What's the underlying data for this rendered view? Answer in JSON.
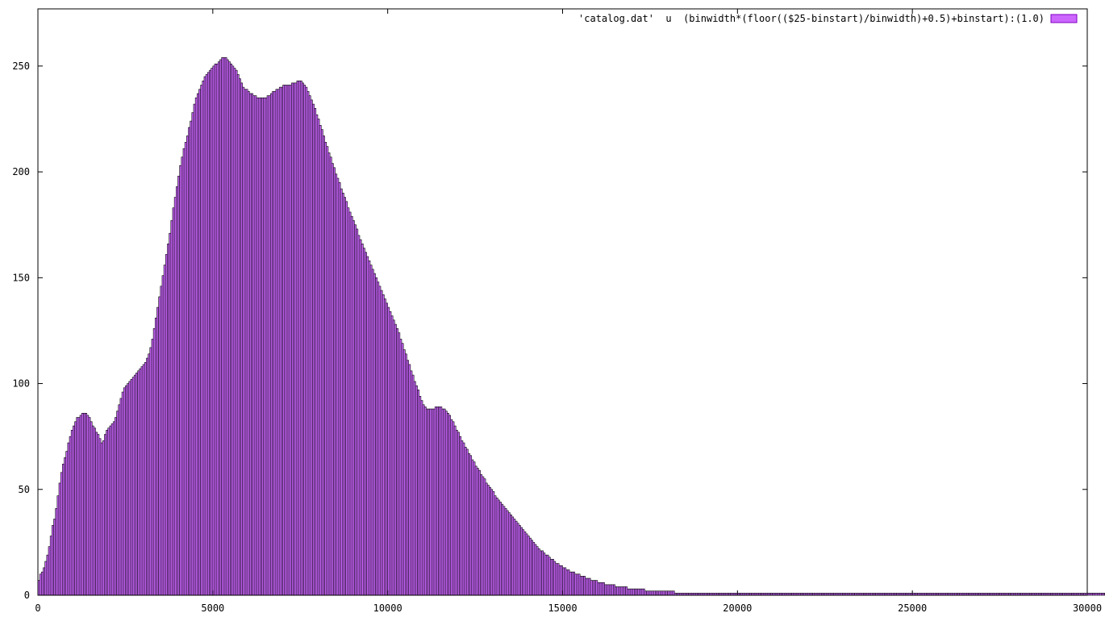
{
  "chart_data": {
    "type": "bar",
    "title": "",
    "xlabel": "",
    "ylabel": "",
    "xlim": [
      0,
      30000
    ],
    "ylim": [
      0,
      277
    ],
    "bin_width": 50,
    "x_ticks": [
      "0",
      "5000",
      "10000",
      "15000",
      "20000",
      "25000",
      "30000"
    ],
    "y_ticks": [
      "0",
      "50",
      "100",
      "150",
      "200",
      "250"
    ],
    "grid": false,
    "legend_position": "top-right",
    "colors": {
      "fill": "#cc66ff",
      "stroke": "#8000c0"
    },
    "series": [
      {
        "name": "'catalog.dat'  u  (binwidth*(floor(($25-binstart)/binwidth)+0.5)+binstart):(1.0)",
        "x_start": 0,
        "values": [
          7,
          10,
          11,
          13,
          16,
          19,
          23,
          28,
          33,
          36,
          41,
          47,
          53,
          58,
          62,
          65,
          68,
          72,
          75,
          78,
          80,
          82,
          84,
          84,
          85,
          86,
          86,
          86,
          85,
          84,
          82,
          80,
          79,
          77,
          76,
          74,
          72,
          73,
          76,
          78,
          79,
          80,
          81,
          82,
          84,
          87,
          90,
          93,
          96,
          98,
          99,
          100,
          101,
          102,
          103,
          104,
          105,
          106,
          107,
          108,
          109,
          110,
          112,
          114,
          117,
          121,
          126,
          131,
          136,
          141,
          146,
          151,
          156,
          161,
          166,
          171,
          177,
          183,
          188,
          193,
          198,
          203,
          207,
          211,
          214,
          217,
          221,
          224,
          228,
          232,
          235,
          237,
          239,
          241,
          243,
          245,
          246,
          247,
          248,
          249,
          250,
          251,
          251,
          252,
          253,
          254,
          254,
          254,
          253,
          252,
          251,
          250,
          249,
          248,
          246,
          244,
          242,
          240,
          239,
          239,
          238,
          237,
          237,
          236,
          236,
          235,
          235,
          235,
          235,
          235,
          235,
          236,
          236,
          237,
          238,
          238,
          239,
          239,
          240,
          240,
          241,
          241,
          241,
          241,
          241,
          242,
          242,
          242,
          243,
          243,
          243,
          242,
          241,
          240,
          238,
          236,
          234,
          232,
          230,
          227,
          225,
          222,
          220,
          217,
          214,
          212,
          209,
          207,
          204,
          202,
          199,
          197,
          195,
          192,
          190,
          188,
          186,
          183,
          181,
          179,
          177,
          175,
          173,
          170,
          168,
          166,
          164,
          162,
          160,
          158,
          156,
          154,
          152,
          150,
          148,
          146,
          144,
          142,
          140,
          138,
          136,
          134,
          132,
          130,
          128,
          126,
          124,
          121,
          119,
          116,
          114,
          111,
          109,
          106,
          104,
          101,
          99,
          97,
          94,
          92,
          90,
          89,
          88,
          88,
          88,
          88,
          88,
          89,
          89,
          89,
          89,
          88,
          88,
          87,
          86,
          85,
          83,
          82,
          80,
          78,
          77,
          75,
          73,
          72,
          70,
          69,
          67,
          66,
          64,
          63,
          61,
          60,
          59,
          57,
          56,
          55,
          53,
          52,
          51,
          50,
          49,
          47,
          46,
          45,
          44,
          43,
          42,
          41,
          40,
          39,
          38,
          37,
          36,
          35,
          34,
          33,
          32,
          31,
          30,
          29,
          28,
          27,
          26,
          25,
          24,
          23,
          22,
          21,
          21,
          20,
          19,
          19,
          18,
          17,
          17,
          16,
          15,
          15,
          14,
          14,
          13,
          13,
          12,
          12,
          11,
          11,
          11,
          10,
          10,
          10,
          9,
          9,
          9,
          8,
          8,
          8,
          7,
          7,
          7,
          7,
          6,
          6,
          6,
          6,
          5,
          5,
          5,
          5,
          5,
          5,
          4,
          4,
          4,
          4,
          4,
          4,
          4,
          3,
          3,
          3,
          3,
          3,
          3,
          3,
          3,
          3,
          3,
          2,
          2,
          2,
          2,
          2,
          2,
          2,
          2,
          2,
          2,
          2,
          2,
          2,
          2,
          2,
          2,
          2,
          1,
          1,
          1,
          1,
          1,
          1,
          1,
          1,
          1,
          1,
          1,
          1,
          1,
          1,
          1,
          1,
          1,
          1,
          1,
          1,
          1,
          1,
          1,
          1,
          1,
          1,
          1,
          1,
          1,
          1,
          1,
          1,
          1,
          1,
          1,
          1,
          1,
          1,
          1,
          1,
          1,
          1,
          1,
          1,
          1,
          1,
          1,
          1,
          1,
          1,
          1,
          1,
          1,
          1,
          1,
          1,
          1,
          1,
          1,
          1,
          1,
          1,
          1,
          1,
          1,
          1,
          1,
          1,
          1,
          1,
          1,
          1,
          1,
          1,
          1,
          1,
          1,
          1,
          1,
          1,
          1,
          1,
          1,
          1,
          1,
          1,
          1,
          1,
          1,
          1,
          1,
          1,
          1,
          1,
          1,
          1,
          1,
          1,
          1,
          1,
          1,
          1,
          1,
          1,
          1,
          1,
          1,
          1,
          1,
          1,
          1,
          1,
          1,
          1,
          1,
          1,
          1,
          1,
          1,
          1,
          1,
          1,
          1,
          1,
          1,
          1,
          1,
          1,
          1,
          1,
          1,
          1,
          1,
          1,
          1,
          1,
          1,
          1,
          1,
          1,
          1,
          1,
          1,
          1,
          1,
          1,
          1,
          1,
          1,
          1,
          1,
          1,
          1,
          1,
          1,
          1,
          1,
          1,
          1,
          1,
          1,
          1,
          1,
          1,
          1,
          1,
          1,
          1,
          1,
          1,
          1,
          1,
          1,
          1,
          1,
          1,
          1,
          1,
          1,
          1,
          1,
          1,
          1,
          1,
          1,
          1,
          1,
          1,
          1,
          1,
          1,
          1,
          1,
          1,
          1,
          1,
          1,
          1,
          1,
          1,
          1,
          1,
          1,
          1,
          1,
          1,
          1,
          1,
          1,
          1,
          1,
          1,
          1,
          1,
          1,
          1,
          1,
          1,
          1,
          1,
          1,
          1,
          1,
          1,
          1,
          1,
          1,
          1,
          1,
          1,
          1,
          1,
          1,
          1,
          1,
          1,
          1,
          1,
          1,
          1,
          1,
          1,
          1,
          1,
          1,
          1,
          1,
          1,
          1,
          1,
          1,
          1,
          1,
          1
        ]
      }
    ]
  }
}
